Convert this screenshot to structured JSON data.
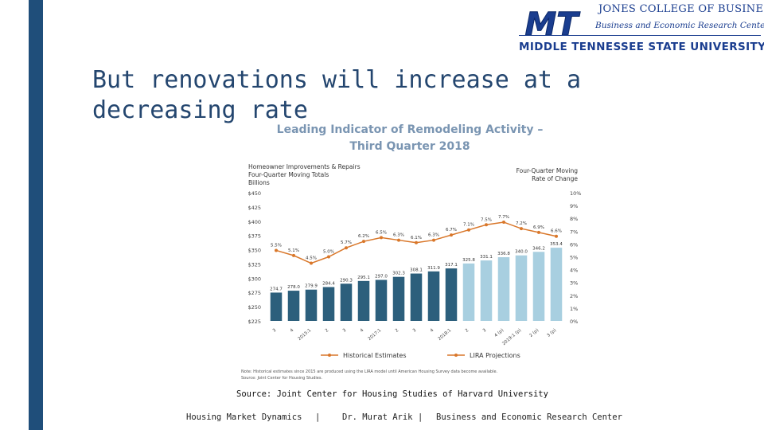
{
  "slide": {
    "title": "But renovations will increase at a decreasing rate",
    "source": "Source: Joint Center for Housing Studies of Harvard University",
    "footer": {
      "left": "Housing Market Dynamics",
      "sep1": "|",
      "middle": "Dr. Murat Arik",
      "sep2": "|",
      "right": "Business and Economic Research Center"
    }
  },
  "logo": {
    "mark": "MT",
    "line1": "JONES COLLEGE OF BUSINESS",
    "line2": "Business and Economic Research Center",
    "line3": "MIDDLE TENNESSEE STATE UNIVERSITY"
  },
  "colors": {
    "accent_bar": "#1f4e7a",
    "historical_bar": "#2c5f7c",
    "projection_bar": "#a8cfe0",
    "line": "#d9772a",
    "title_text": "#24466f",
    "chart_title": "#7a95b2"
  },
  "chart_data": {
    "type": "bar",
    "title_line1": "Leading Indicator of Remodeling Activity –",
    "title_line2": "Third Quarter 2018",
    "left_axis_title": [
      "Homeowner Improvements & Repairs",
      "Four-Quarter Moving Totals",
      "Billions"
    ],
    "right_axis_title": [
      "Four-Quarter Moving",
      "Rate of Change"
    ],
    "ylim": [
      225,
      450
    ],
    "yticks": [
      "$450",
      "$425",
      "$400",
      "$375",
      "$350",
      "$325",
      "$300",
      "$275",
      "$250",
      "$225"
    ],
    "y2lim": [
      0,
      10
    ],
    "y2ticks": [
      "10%",
      "9%",
      "8%",
      "7%",
      "6%",
      "5%",
      "4%",
      "3%",
      "2%",
      "1%",
      "0%"
    ],
    "categories": [
      "3",
      "4",
      "2015:1",
      "2",
      "3",
      "4",
      "2017:1",
      "2",
      "3",
      "4",
      "2018:1",
      "2",
      "3",
      "4 (p)",
      "2019:1 (p)",
      "2 (p)",
      "3 (p)"
    ],
    "series": [
      {
        "name": "Historical Estimates",
        "values": [
          274.7,
          278.0,
          279.9,
          284.4,
          290.3,
          295.1,
          297.0,
          302.3,
          308.1,
          311.9,
          317.1,
          null,
          null,
          null,
          null,
          null,
          null
        ],
        "labels": [
          "274.7",
          "278.0",
          "279.9",
          "284.4",
          "290.3",
          "295.1",
          "297.0",
          "302.3",
          "308.1",
          "311.9",
          "317.1",
          "",
          "",
          "",
          "",
          "",
          ""
        ]
      },
      {
        "name": "LIRA Projections",
        "values": [
          null,
          null,
          null,
          null,
          null,
          null,
          null,
          null,
          null,
          null,
          null,
          325.8,
          331.1,
          336.8,
          340.0,
          346.2,
          353.4
        ],
        "labels": [
          "",
          "",
          "",
          "",
          "",
          "",
          "",
          "",
          "",
          "",
          "",
          "325.8",
          "331.1",
          "336.8",
          "340.0",
          "346.2",
          "353.4"
        ]
      },
      {
        "name": "Rate of Change",
        "axis": "right",
        "values": [
          5.5,
          5.1,
          4.5,
          5.0,
          5.7,
          6.2,
          6.5,
          6.3,
          6.1,
          6.3,
          6.7,
          7.1,
          7.5,
          7.7,
          7.2,
          6.9,
          6.6
        ],
        "labels": [
          "5.5%",
          "5.1%",
          "4.5%",
          "5.0%",
          "5.7%",
          "6.2%",
          "6.5%",
          "6.3%",
          "6.1%",
          "6.3%",
          "6.7%",
          "7.1%",
          "7.5%",
          "7.7%",
          "7.2%",
          "6.9%",
          "6.6%"
        ]
      }
    ],
    "legend": [
      "Historical Estimates",
      "LIRA Projections"
    ],
    "notes": [
      "Note: Historical estimates since 2015 are produced using the LIRA model until American Housing Survey data become available.",
      "Source: Joint Center for Housing Studies."
    ]
  }
}
